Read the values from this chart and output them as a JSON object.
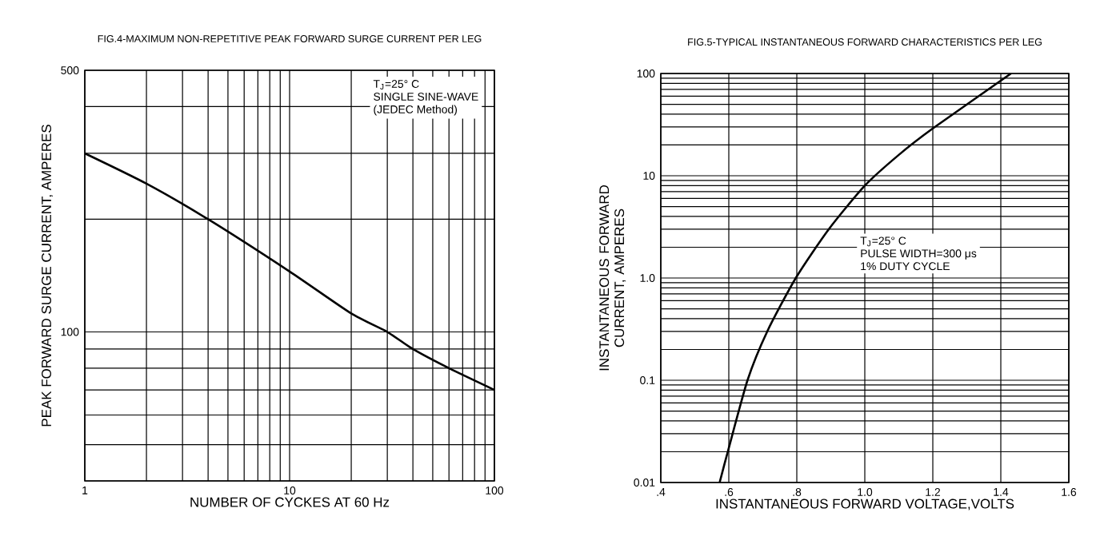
{
  "chart_data": [
    {
      "type": "line",
      "title": "FIG.4-MAXIMUM NON-REPETITIVE PEAK FORWARD SURGE CURRENT PER LEG",
      "xlabel": "NUMBER OF CYCKES AT 60 Hz",
      "ylabel": "PEAK FORWARD SURGE CURRENT, AMPERES",
      "annotations": [
        "T$_{J}$=25° C",
        "SINGLE SINE-WAVE",
        "(JEDEC Method)"
      ],
      "log": "xy",
      "grid": true,
      "xlim": [
        1,
        100
      ],
      "ylim": [
        40,
        500
      ],
      "xticks": [
        1,
        {
          "value": 2,
          "label": null
        },
        {
          "value": 3,
          "label": null
        },
        {
          "value": 4,
          "label": null
        },
        {
          "value": 5,
          "label": null
        },
        {
          "value": 6,
          "label": null
        },
        {
          "value": 7,
          "label": null
        },
        {
          "value": 8,
          "label": null
        },
        {
          "value": 9,
          "label": null
        },
        10,
        {
          "value": 20,
          "label": null
        },
        {
          "value": 30,
          "label": null
        },
        {
          "value": 40,
          "label": null
        },
        {
          "value": 50,
          "label": null
        },
        {
          "value": 60,
          "label": null
        },
        {
          "value": 70,
          "label": null
        },
        {
          "value": 80,
          "label": null
        },
        {
          "value": 90,
          "label": null
        },
        100
      ],
      "yticks": [
        {
          "value": 40,
          "label": null
        },
        {
          "value": 50,
          "label": null
        },
        {
          "value": 60,
          "label": null
        },
        {
          "value": 70,
          "label": null
        },
        {
          "value": 80,
          "label": null
        },
        {
          "value": 90,
          "label": null
        },
        100,
        {
          "value": 200,
          "label": null
        },
        {
          "value": 300,
          "label": null
        },
        {
          "value": 400,
          "label": null
        },
        500
      ],
      "x": [
        1,
        2,
        4,
        10,
        20,
        30,
        40,
        60,
        100
      ],
      "series": [
        {
          "color": "#000000",
          "values": [
            300,
            249,
            200,
            145,
            112,
            100,
            90,
            80,
            70
          ]
        }
      ]
    },
    {
      "type": "line",
      "title": "FIG.5-TYPICAL INSTANTANEOUS FORWARD CHARACTERISTICS PER LEG",
      "xlabel": "INSTANTANEOUS FORWARD VOLTAGE,VOLTS",
      "ylabel": "INSTANTANEOUS FORWARD CURRENT, AMPERES",
      "annotations": [
        "T$_{J}$=25° C",
        "PULSE WIDTH=300 μs",
        "1% DUTY CYCLE"
      ],
      "log": "y",
      "grid": true,
      "xlim": [
        0.4,
        1.6
      ],
      "ylim": [
        0.01,
        100
      ],
      "xticks": [
        {
          "value": 0.4,
          "label": ".4"
        },
        {
          "value": 0.6,
          "label": ".6"
        },
        {
          "value": 0.8,
          "label": ".8"
        },
        {
          "value": 1.0,
          "label": "1.0"
        },
        {
          "value": 1.2,
          "label": "1.2"
        },
        {
          "value": 1.4,
          "label": "1.4"
        },
        {
          "value": 1.6,
          "label": "1.6"
        }
      ],
      "yticks": [
        {
          "value": 0.01,
          "label": "0.01"
        },
        {
          "value": 0.02,
          "label": null
        },
        {
          "value": 0.03,
          "label": null
        },
        {
          "value": 0.04,
          "label": null
        },
        {
          "value": 0.05,
          "label": null
        },
        {
          "value": 0.06,
          "label": null
        },
        {
          "value": 0.07,
          "label": null
        },
        {
          "value": 0.08,
          "label": null
        },
        {
          "value": 0.09,
          "label": null
        },
        {
          "value": 0.1,
          "label": "0.1"
        },
        {
          "value": 0.2,
          "label": null
        },
        {
          "value": 0.3,
          "label": null
        },
        {
          "value": 0.4,
          "label": null
        },
        {
          "value": 0.5,
          "label": null
        },
        {
          "value": 0.6,
          "label": null
        },
        {
          "value": 0.7,
          "label": null
        },
        {
          "value": 0.8,
          "label": null
        },
        {
          "value": 0.9,
          "label": null
        },
        {
          "value": 1,
          "label": "1.0"
        },
        {
          "value": 2,
          "label": null
        },
        {
          "value": 3,
          "label": null
        },
        {
          "value": 4,
          "label": null
        },
        {
          "value": 5,
          "label": null
        },
        {
          "value": 6,
          "label": null
        },
        {
          "value": 7,
          "label": null
        },
        {
          "value": 8,
          "label": null
        },
        {
          "value": 9,
          "label": null
        },
        10,
        {
          "value": 20,
          "label": null
        },
        {
          "value": 30,
          "label": null
        },
        {
          "value": 40,
          "label": null
        },
        {
          "value": 50,
          "label": null
        },
        {
          "value": 60,
          "label": null
        },
        {
          "value": 70,
          "label": null
        },
        {
          "value": 80,
          "label": null
        },
        {
          "value": 90,
          "label": null
        },
        100
      ],
      "x": [
        0.573,
        0.597,
        0.655,
        0.713,
        0.797,
        0.894,
        1.0,
        1.1,
        1.2,
        1.43
      ],
      "series": [
        {
          "color": "#000000",
          "values": [
            0.01,
            0.02,
            0.1,
            0.3,
            1,
            3,
            8,
            16,
            29,
            100
          ]
        }
      ]
    }
  ]
}
